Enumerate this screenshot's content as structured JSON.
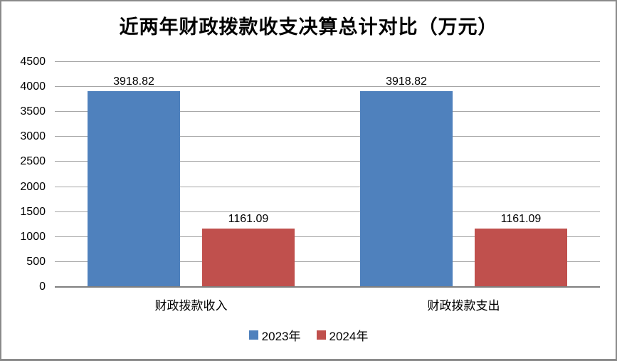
{
  "chart_data": {
    "type": "bar",
    "title": "近两年财政拨款收支决算总计对比（万元）",
    "categories": [
      "财政拨款收入",
      "财政拨款支出"
    ],
    "series": [
      {
        "name": "2023年",
        "color": "#4F81BD",
        "values": [
          3918.82,
          3918.82
        ],
        "labels": [
          "3918.82",
          "3918.82"
        ]
      },
      {
        "name": "2024年",
        "color": "#C0504D",
        "values": [
          1161.09,
          1161.09
        ],
        "labels": [
          "1161.09",
          "1161.09"
        ]
      }
    ],
    "ylim": [
      0,
      4500
    ],
    "yticks": [
      0,
      500,
      1000,
      1500,
      2000,
      2500,
      3000,
      3500,
      4000,
      4500
    ],
    "grid": true,
    "legend_position": "bottom"
  },
  "colors": {
    "series_2023": "#4F81BD",
    "series_2024": "#C0504D",
    "gridline": "#A6A6A6",
    "axis_line": "#808080",
    "chart_border": "#8A8A8A",
    "background": "#FFFFFF",
    "text": "#000000"
  }
}
